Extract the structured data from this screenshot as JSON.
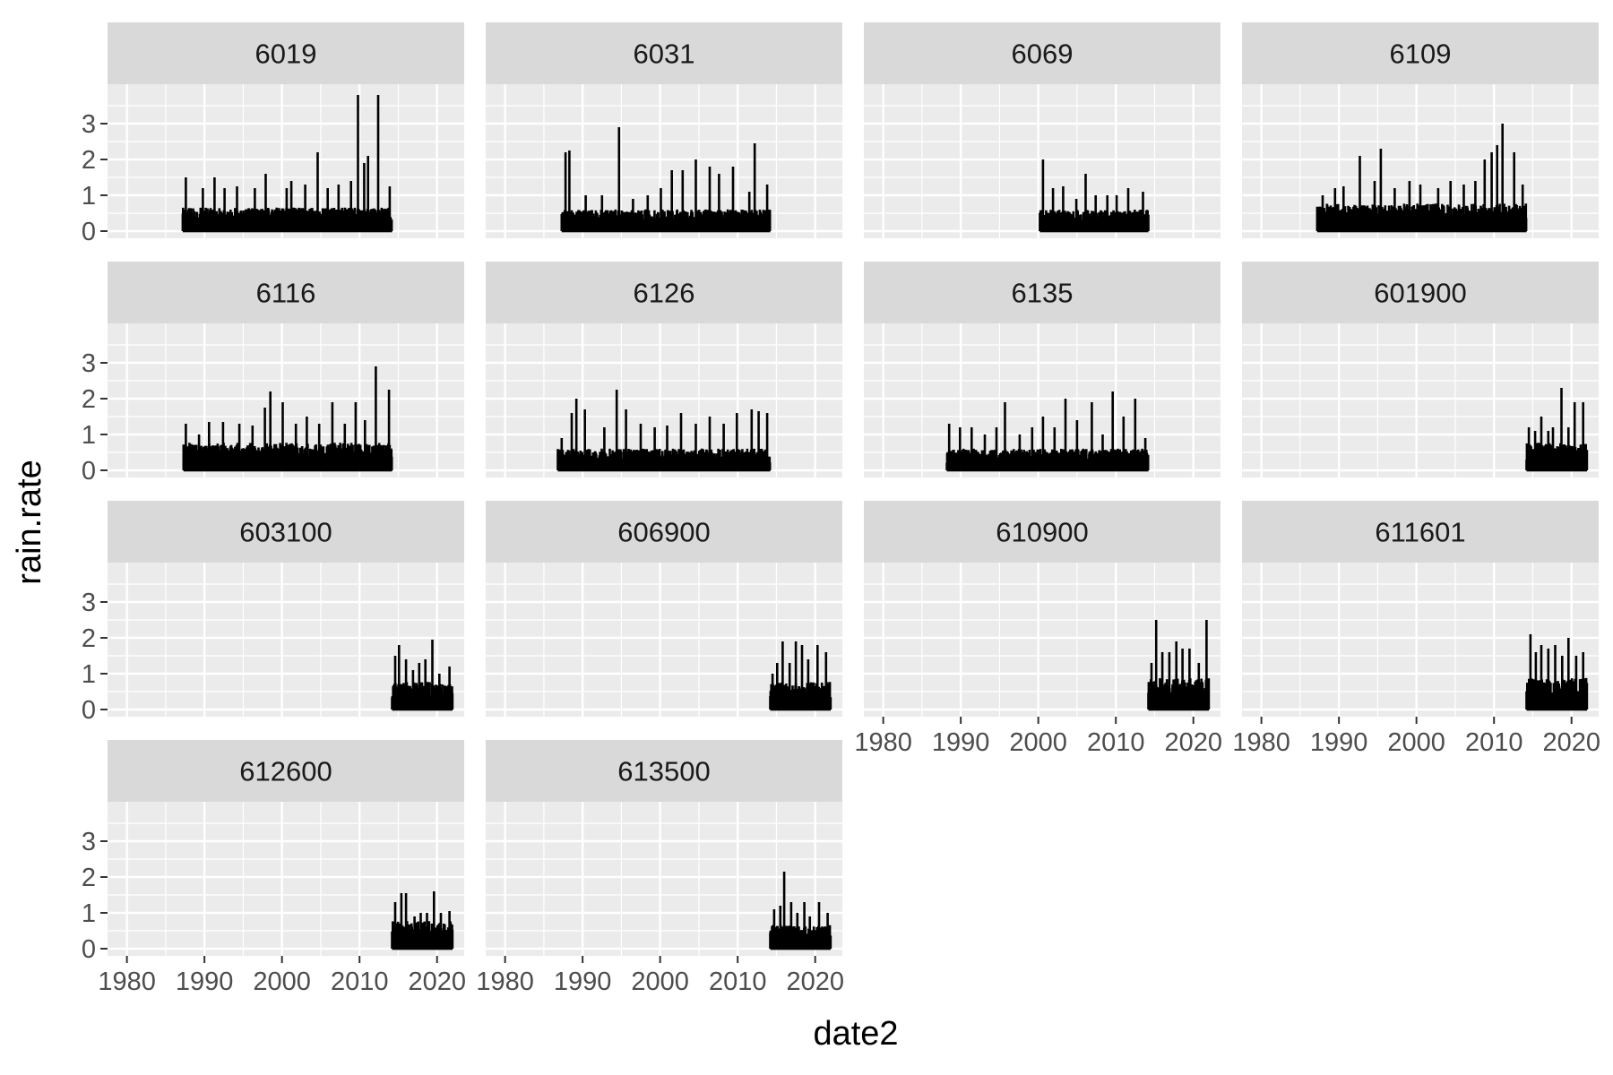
{
  "chart_data": {
    "type": "line",
    "layout": "facet_wrap",
    "ncol": 4,
    "xlabel": "date2",
    "ylabel": "rain.rate",
    "xlim": [
      1977.5,
      2023.5
    ],
    "ylim": [
      -0.2,
      4.1
    ],
    "xticks": [
      "1980",
      "1990",
      "2000",
      "2010",
      "2020"
    ],
    "yticks": [
      "0",
      "1",
      "2",
      "3"
    ],
    "xtick_values": [
      1980,
      1990,
      2000,
      2010,
      2020
    ],
    "ytick_values": [
      0,
      1,
      2,
      3
    ],
    "grid": true,
    "colors": {
      "panel_bg": "#ebebeb",
      "strip_bg": "#d9d9d9",
      "grid": "#ffffff",
      "line": "#000000"
    },
    "series": [
      {
        "name": "6019",
        "start": 1987.2,
        "end": 2014.2,
        "base": 0.6,
        "peaks": [
          [
            1987.6,
            1.5
          ],
          [
            1989.8,
            1.2
          ],
          [
            1991.3,
            1.5
          ],
          [
            1992.6,
            1.2
          ],
          [
            1994.2,
            1.25
          ],
          [
            1996.5,
            1.2
          ],
          [
            1997.9,
            1.6
          ],
          [
            2000.6,
            1.2
          ],
          [
            2001.2,
            1.4
          ],
          [
            2003.0,
            1.3
          ],
          [
            2004.6,
            2.2
          ],
          [
            2005.9,
            1.2
          ],
          [
            2007.3,
            1.3
          ],
          [
            2008.9,
            1.4
          ],
          [
            2009.8,
            3.8
          ],
          [
            2010.6,
            1.9
          ],
          [
            2011.1,
            2.1
          ],
          [
            2012.4,
            3.8
          ],
          [
            2013.9,
            1.25
          ]
        ]
      },
      {
        "name": "6031",
        "start": 1987.3,
        "end": 2014.2,
        "base": 0.55,
        "peaks": [
          [
            1987.8,
            2.2
          ],
          [
            1988.3,
            2.25
          ],
          [
            1990.4,
            1.0
          ],
          [
            1992.5,
            1.0
          ],
          [
            1994.7,
            2.9
          ],
          [
            1996.5,
            0.9
          ],
          [
            1998.4,
            1.0
          ],
          [
            2000.1,
            1.2
          ],
          [
            2001.5,
            1.7
          ],
          [
            2002.9,
            1.7
          ],
          [
            2004.6,
            2.0
          ],
          [
            2006.4,
            1.8
          ],
          [
            2007.6,
            1.6
          ],
          [
            2009.4,
            1.8
          ],
          [
            2011.5,
            1.1
          ],
          [
            2012.2,
            2.45
          ],
          [
            2013.8,
            1.3
          ]
        ]
      },
      {
        "name": "6069",
        "start": 2000.2,
        "end": 2014.2,
        "base": 0.55,
        "peaks": [
          [
            2000.6,
            2.0
          ],
          [
            2001.9,
            1.2
          ],
          [
            2003.2,
            1.25
          ],
          [
            2004.9,
            0.9
          ],
          [
            2006.1,
            1.6
          ],
          [
            2007.4,
            1.0
          ],
          [
            2008.9,
            1.0
          ],
          [
            2010.1,
            1.0
          ],
          [
            2011.6,
            1.2
          ],
          [
            2013.5,
            1.1
          ]
        ]
      },
      {
        "name": "6109",
        "start": 1987.2,
        "end": 2014.2,
        "base": 0.7,
        "peaks": [
          [
            1987.9,
            1.0
          ],
          [
            1989.5,
            1.2
          ],
          [
            1990.6,
            1.25
          ],
          [
            1992.7,
            2.1
          ],
          [
            1994.6,
            1.4
          ],
          [
            1995.4,
            2.3
          ],
          [
            1997.2,
            1.2
          ],
          [
            1999.1,
            1.4
          ],
          [
            2000.5,
            1.3
          ],
          [
            2002.8,
            1.2
          ],
          [
            2004.4,
            1.4
          ],
          [
            2006.1,
            1.3
          ],
          [
            2007.6,
            1.4
          ],
          [
            2008.8,
            2.0
          ],
          [
            2009.7,
            2.2
          ],
          [
            2010.4,
            2.4
          ],
          [
            2011.1,
            3.0
          ],
          [
            2012.6,
            2.2
          ],
          [
            2013.7,
            1.3
          ]
        ]
      },
      {
        "name": "6116",
        "start": 1987.3,
        "end": 2014.2,
        "base": 0.7,
        "peaks": [
          [
            1987.6,
            1.3
          ],
          [
            1989.3,
            1.0
          ],
          [
            1990.6,
            1.35
          ],
          [
            1992.4,
            1.35
          ],
          [
            1994.5,
            1.3
          ],
          [
            1996.2,
            1.25
          ],
          [
            1997.8,
            1.75
          ],
          [
            1998.5,
            2.2
          ],
          [
            2000.1,
            1.9
          ],
          [
            2001.8,
            1.3
          ],
          [
            2003.2,
            1.5
          ],
          [
            2004.8,
            1.3
          ],
          [
            2006.5,
            1.9
          ],
          [
            2008.1,
            1.3
          ],
          [
            2009.5,
            1.9
          ],
          [
            2010.7,
            1.4
          ],
          [
            2012.1,
            2.9
          ],
          [
            2013.8,
            2.25
          ]
        ]
      },
      {
        "name": "6126",
        "start": 1986.8,
        "end": 2014.2,
        "base": 0.55,
        "peaks": [
          [
            1987.3,
            0.9
          ],
          [
            1988.6,
            1.6
          ],
          [
            1989.2,
            2.0
          ],
          [
            1990.3,
            1.7
          ],
          [
            1992.8,
            1.2
          ],
          [
            1994.4,
            2.25
          ],
          [
            1995.6,
            1.7
          ],
          [
            1997.5,
            1.3
          ],
          [
            1999.3,
            1.2
          ],
          [
            2000.9,
            1.25
          ],
          [
            2002.7,
            1.6
          ],
          [
            2004.6,
            1.3
          ],
          [
            2006.4,
            1.5
          ],
          [
            2008.2,
            1.3
          ],
          [
            2009.9,
            1.6
          ],
          [
            2011.8,
            1.7
          ],
          [
            2012.7,
            1.65
          ],
          [
            2013.8,
            1.6
          ]
        ]
      },
      {
        "name": "6135",
        "start": 1988.2,
        "end": 2014.2,
        "base": 0.55,
        "peaks": [
          [
            1988.5,
            1.3
          ],
          [
            1989.9,
            1.2
          ],
          [
            1991.4,
            1.2
          ],
          [
            1993.1,
            1.0
          ],
          [
            1994.6,
            1.2
          ],
          [
            1995.7,
            1.9
          ],
          [
            1997.6,
            1.0
          ],
          [
            1999.2,
            1.2
          ],
          [
            2000.6,
            1.5
          ],
          [
            2002.1,
            1.2
          ],
          [
            2003.5,
            2.0
          ],
          [
            2005.0,
            1.4
          ],
          [
            2006.9,
            1.9
          ],
          [
            2008.3,
            1.0
          ],
          [
            2009.6,
            2.2
          ],
          [
            2011.0,
            1.5
          ],
          [
            2012.5,
            2.0
          ],
          [
            2013.8,
            0.9
          ]
        ]
      },
      {
        "name": "601900",
        "start": 2014.2,
        "end": 2022.0,
        "base": 0.7,
        "peaks": [
          [
            2014.5,
            1.2
          ],
          [
            2015.3,
            1.1
          ],
          [
            2016.1,
            1.5
          ],
          [
            2017.0,
            1.1
          ],
          [
            2017.6,
            1.2
          ],
          [
            2018.7,
            2.3
          ],
          [
            2019.6,
            1.2
          ],
          [
            2020.4,
            1.9
          ],
          [
            2021.5,
            1.9
          ]
        ]
      },
      {
        "name": "603100",
        "start": 2014.2,
        "end": 2022.0,
        "base": 0.7,
        "peaks": [
          [
            2014.6,
            1.5
          ],
          [
            2015.1,
            1.8
          ],
          [
            2016.0,
            1.4
          ],
          [
            2016.9,
            1.1
          ],
          [
            2017.7,
            1.3
          ],
          [
            2018.5,
            1.4
          ],
          [
            2019.4,
            1.95
          ],
          [
            2020.3,
            1.0
          ],
          [
            2021.6,
            1.2
          ]
        ]
      },
      {
        "name": "606900",
        "start": 2014.2,
        "end": 2022.0,
        "base": 0.7,
        "peaks": [
          [
            2014.5,
            1.0
          ],
          [
            2015.1,
            1.3
          ],
          [
            2015.8,
            1.9
          ],
          [
            2016.7,
            1.3
          ],
          [
            2017.5,
            1.9
          ],
          [
            2018.3,
            1.8
          ],
          [
            2019.1,
            1.4
          ],
          [
            2020.3,
            1.8
          ],
          [
            2021.4,
            1.6
          ]
        ]
      },
      {
        "name": "610900",
        "start": 2014.2,
        "end": 2022.0,
        "base": 0.8,
        "peaks": [
          [
            2014.6,
            1.3
          ],
          [
            2015.2,
            2.5
          ],
          [
            2016.0,
            1.6
          ],
          [
            2016.9,
            1.6
          ],
          [
            2017.8,
            1.9
          ],
          [
            2018.6,
            1.7
          ],
          [
            2019.5,
            1.7
          ],
          [
            2020.7,
            1.3
          ],
          [
            2021.7,
            2.5
          ]
        ]
      },
      {
        "name": "611601",
        "start": 2014.2,
        "end": 2022.0,
        "base": 0.8,
        "peaks": [
          [
            2014.7,
            2.1
          ],
          [
            2015.4,
            1.6
          ],
          [
            2016.1,
            1.8
          ],
          [
            2017.0,
            1.7
          ],
          [
            2017.9,
            1.8
          ],
          [
            2018.8,
            1.5
          ],
          [
            2019.6,
            2.0
          ],
          [
            2020.6,
            1.5
          ],
          [
            2021.5,
            1.6
          ]
        ]
      },
      {
        "name": "612600",
        "start": 2014.2,
        "end": 2022.0,
        "base": 0.7,
        "peaks": [
          [
            2014.6,
            1.3
          ],
          [
            2015.4,
            1.55
          ],
          [
            2016.0,
            1.55
          ],
          [
            2017.1,
            0.9
          ],
          [
            2017.9,
            1.0
          ],
          [
            2018.7,
            1.0
          ],
          [
            2019.6,
            1.6
          ],
          [
            2020.5,
            1.0
          ],
          [
            2021.6,
            1.05
          ]
        ]
      },
      {
        "name": "613500",
        "start": 2014.2,
        "end": 2022.0,
        "base": 0.6,
        "peaks": [
          [
            2014.7,
            1.1
          ],
          [
            2015.5,
            1.2
          ],
          [
            2016.0,
            2.15
          ],
          [
            2016.9,
            1.3
          ],
          [
            2017.7,
            1.0
          ],
          [
            2018.6,
            1.3
          ],
          [
            2019.3,
            0.9
          ],
          [
            2020.5,
            1.3
          ],
          [
            2021.6,
            1.0
          ]
        ]
      }
    ]
  }
}
